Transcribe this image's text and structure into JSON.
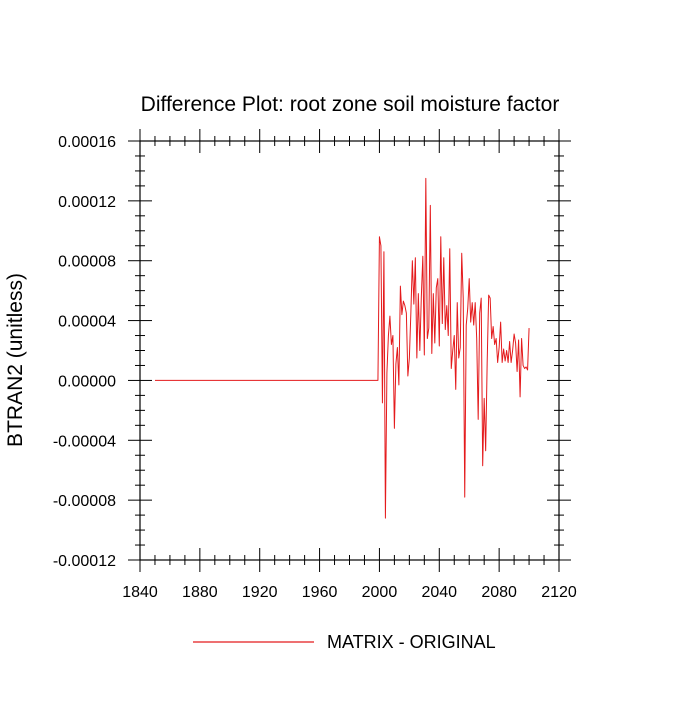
{
  "chart_data": {
    "type": "line",
    "title": "Difference Plot: root zone soil moisture factor",
    "xlabel": "",
    "ylabel": "BTRAN2  (unitless)",
    "xlim": [
      1840,
      2120
    ],
    "ylim": [
      -0.00012,
      0.00016
    ],
    "x_ticks": [
      "1840",
      "1880",
      "1920",
      "1960",
      "2000",
      "2040",
      "2080",
      "2120"
    ],
    "y_ticks": [
      "-0.00012",
      "-0.00008",
      "-0.00004",
      "0.00000",
      "0.00004",
      "0.00008",
      "0.00012",
      "0.00016"
    ],
    "grid": false,
    "legend_position": "bottom",
    "series": [
      {
        "name": "MATRIX - ORIGINAL",
        "color": "#e41a1c",
        "x": [
          1850,
          1999,
          2000,
          2001,
          2002,
          2003,
          2004,
          2005,
          2006,
          2007,
          2008,
          2009,
          2010,
          2011,
          2012,
          2013,
          2014,
          2015,
          2016,
          2017,
          2018,
          2019,
          2020,
          2021,
          2022,
          2023,
          2024,
          2025,
          2026,
          2027,
          2028,
          2029,
          2030,
          2031,
          2032,
          2033,
          2034,
          2035,
          2036,
          2037,
          2038,
          2039,
          2040,
          2041,
          2042,
          2043,
          2044,
          2045,
          2046,
          2047,
          2048,
          2049,
          2050,
          2051,
          2052,
          2053,
          2054,
          2055,
          2056,
          2057,
          2058,
          2059,
          2060,
          2061,
          2062,
          2063,
          2064,
          2065,
          2066,
          2067,
          2068,
          2069,
          2070,
          2071,
          2072,
          2073,
          2074,
          2075,
          2076,
          2077,
          2078,
          2079,
          2080,
          2081,
          2082,
          2083,
          2084,
          2085,
          2086,
          2087,
          2088,
          2089,
          2090,
          2091,
          2092,
          2093,
          2094,
          2095,
          2096,
          2097,
          2098,
          2099,
          2100
        ],
        "values": [
          0.0,
          0.0,
          9.6e-05,
          9e-05,
          -1.5e-05,
          8.6e-05,
          -9.2e-05,
          5e-06,
          3e-05,
          4.3e-05,
          2.4e-05,
          3e-05,
          -3.2e-05,
          1.1e-05,
          2.2e-05,
          -3e-06,
          6.3e-05,
          4.4e-05,
          5.3e-05,
          5e-05,
          4.5e-05,
          3e-06,
          1.5e-05,
          4.5e-05,
          8e-05,
          5.1e-05,
          8.2e-05,
          1.5e-05,
          5.8e-05,
          2e-05,
          5.6e-05,
          8.3e-05,
          1.7e-05,
          0.000135,
          2.8e-05,
          3.5e-05,
          0.000117,
          1.8e-05,
          5.8e-05,
          2.5e-05,
          6.2e-05,
          6.8e-05,
          2.3e-05,
          9.6e-05,
          3.8e-05,
          8.2e-05,
          3.4e-05,
          5e-05,
          3e-05,
          8.8e-05,
          8e-06,
          2e-05,
          3e-05,
          -6e-06,
          5.2e-05,
          1.5e-05,
          2.2e-05,
          8.5e-05,
          5.5e-05,
          -7.8e-05,
          3.7e-05,
          4.8e-05,
          6.8e-05,
          3.9e-05,
          5.2e-05,
          3.7e-05,
          5.2e-05,
          2.8e-05,
          -2.6e-05,
          4.5e-05,
          5.5e-05,
          -5.7e-05,
          -1.2e-05,
          -4.7e-05,
          1.2e-05,
          5.7e-05,
          5.5e-05,
          2.8e-05,
          3.6e-05,
          2.4e-05,
          2.8e-05,
          1.2e-05,
          2.2e-05,
          3.9e-05,
          1.2e-05,
          2.1e-05,
          1.3e-05,
          2e-05,
          1.2e-05,
          2.6e-05,
          1.2e-05,
          2e-05,
          3.1e-05,
          2.5e-05,
          6e-06,
          2.7e-05,
          -1.1e-05,
          2.8e-05,
          1e-05,
          8e-06,
          9e-06,
          7e-06,
          3.5e-05
        ]
      }
    ]
  }
}
